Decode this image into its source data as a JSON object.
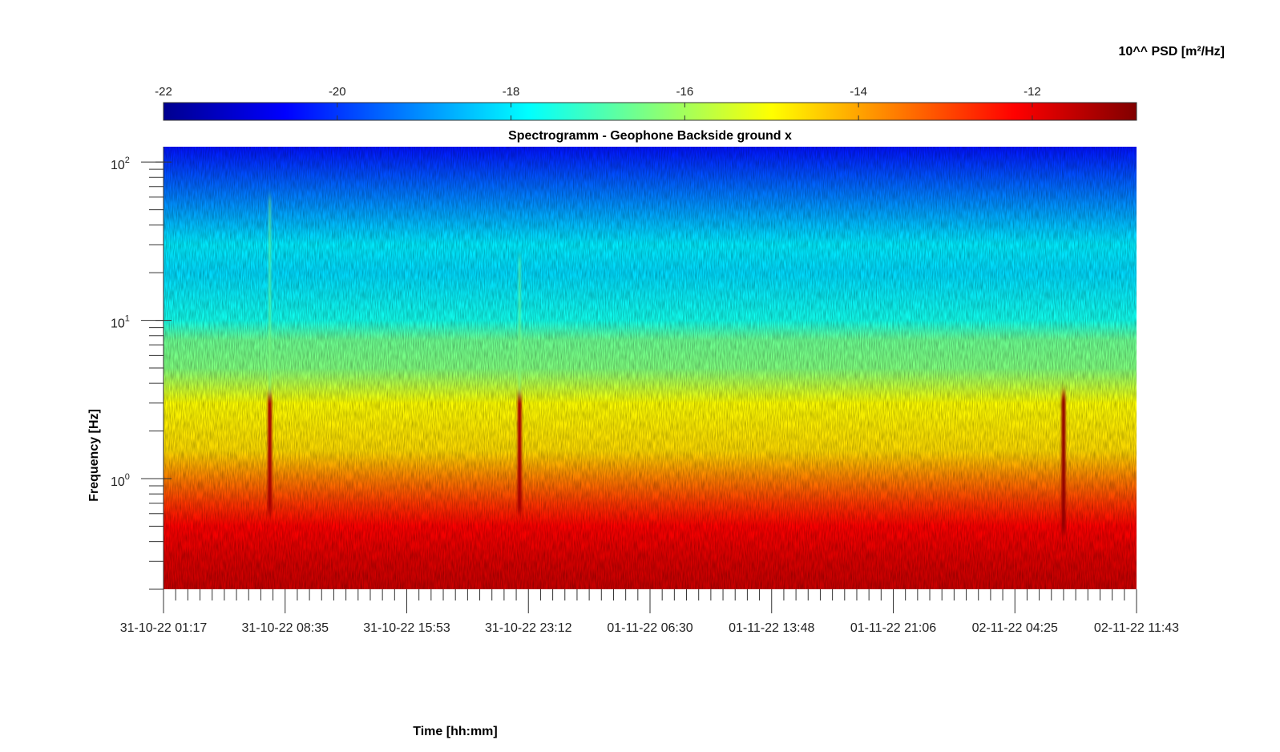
{
  "chart_data": {
    "type": "heatmap",
    "title": "Spectrogramm - Geophone Backside ground x",
    "xlabel": "Time [hh:mm]",
    "ylabel": "Frequency [Hz]",
    "colorbar": {
      "label": "10^^ PSD [m²/Hz]",
      "range": [
        -22,
        -10.8
      ],
      "ticks": [
        -22,
        -20,
        -18,
        -16,
        -14,
        -12
      ],
      "colormap": "jet"
    },
    "x_ticks": [
      "31-10-22 01:17",
      "31-10-22 08:35",
      "31-10-22 15:53",
      "31-10-22 23:12",
      "01-11-22 06:30",
      "01-11-22 13:48",
      "01-11-22 21:06",
      "02-11-22 04:25",
      "02-11-22 11:43"
    ],
    "y_scale": "log",
    "y_range_hz": [
      0.2,
      125
    ],
    "y_ticks": [
      {
        "base": "10",
        "exp": "0",
        "value": 1
      },
      {
        "base": "10",
        "exp": "1",
        "value": 10
      },
      {
        "base": "10",
        "exp": "2",
        "value": 100
      }
    ],
    "bands": [
      {
        "freq_hz": 0.2,
        "psd_log10": -11.6
      },
      {
        "freq_hz": 0.3,
        "psd_log10": -11.8
      },
      {
        "freq_hz": 0.5,
        "psd_log10": -12.2
      },
      {
        "freq_hz": 0.7,
        "psd_log10": -12.8
      },
      {
        "freq_hz": 1.0,
        "psd_log10": -13.6
      },
      {
        "freq_hz": 1.5,
        "psd_log10": -14.6
      },
      {
        "freq_hz": 3.0,
        "psd_log10": -15.0
      },
      {
        "freq_hz": 5.0,
        "psd_log10": -16.4
      },
      {
        "freq_hz": 7.5,
        "psd_log10": -16.6
      },
      {
        "freq_hz": 10,
        "psd_log10": -17.6
      },
      {
        "freq_hz": 20,
        "psd_log10": -18.2
      },
      {
        "freq_hz": 30,
        "psd_log10": -18.0
      },
      {
        "freq_hz": 60,
        "psd_log10": -19.2
      },
      {
        "freq_hz": 125,
        "psd_log10": -20.4
      }
    ],
    "events": [
      {
        "time": "31-10-22 07:40",
        "f_low_hz": 0.6,
        "f_high_hz": 60,
        "psd_log10": -11.2
      },
      {
        "time": "31-10-22 22:40",
        "f_low_hz": 0.6,
        "f_high_hz": 25,
        "psd_log10": -11.2
      },
      {
        "time": "02-11-22 07:20",
        "f_low_hz": 0.45,
        "f_high_hz": 3.5,
        "psd_log10": -11.0
      }
    ],
    "grid": false,
    "legend": "colorbar-top"
  }
}
